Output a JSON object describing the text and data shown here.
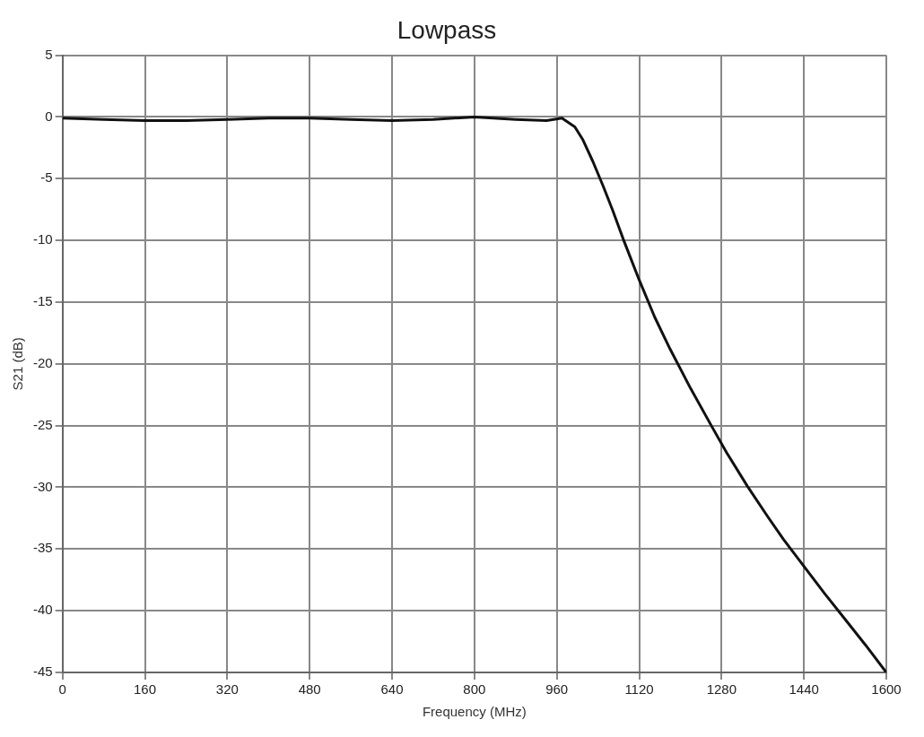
{
  "chart_data": {
    "type": "line",
    "title": "Lowpass",
    "xlabel": "Frequency (MHz)",
    "ylabel": "S21 (dB)",
    "series": [
      {
        "color": "#111111",
        "x": [
          0,
          80,
          160,
          240,
          320,
          400,
          480,
          560,
          640,
          720,
          800,
          880,
          940,
          970,
          995,
          1010,
          1030,
          1050,
          1068,
          1090,
          1120,
          1150,
          1180,
          1220,
          1260,
          1290,
          1330,
          1370,
          1400,
          1440,
          1480,
          1520,
          1560,
          1600
        ],
        "values": [
          -0.1,
          -0.2,
          -0.3,
          -0.3,
          -0.2,
          -0.1,
          -0.1,
          -0.2,
          -0.3,
          -0.2,
          0,
          -0.2,
          -0.3,
          -0.1,
          -0.8,
          -1.8,
          -3.6,
          -5.6,
          -7.5,
          -10,
          -13.2,
          -16.2,
          -18.8,
          -22,
          -25,
          -27.2,
          -29.9,
          -32.4,
          -34.2,
          -36.4,
          -38.6,
          -40.7,
          -42.8,
          -45
        ]
      }
    ],
    "xlim": [
      0,
      1600
    ],
    "xticks": [
      0,
      160,
      320,
      480,
      640,
      800,
      960,
      1120,
      1280,
      1440,
      1600
    ],
    "ylim": [
      -45,
      5
    ],
    "yticks": [
      -45,
      -40,
      -35,
      -30,
      -25,
      -20,
      -15,
      -10,
      -5,
      0,
      5
    ],
    "grid": true,
    "legend": false,
    "marker": "none",
    "line_style": "solid"
  }
}
